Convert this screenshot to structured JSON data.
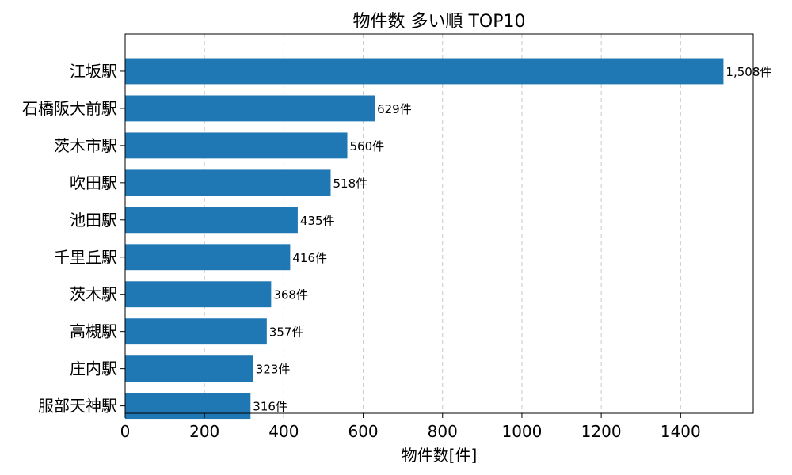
{
  "chart_data": {
    "type": "bar",
    "orientation": "horizontal",
    "title": "物件数 多い順 TOP10",
    "xlabel": "物件数[件]",
    "ylabel": "",
    "categories": [
      "江坂駅",
      "石橋阪大前駅",
      "茨木市駅",
      "吹田駅",
      "池田駅",
      "千里丘駅",
      "茨木駅",
      "高槻駅",
      "庄内駅",
      "服部天神駅"
    ],
    "values": [
      1508,
      629,
      560,
      518,
      435,
      416,
      368,
      357,
      323,
      316
    ],
    "data_labels": [
      "1,508件",
      "629件",
      "560件",
      "518件",
      "435件",
      "416件",
      "368件",
      "357件",
      "323件",
      "316件"
    ],
    "x_ticks": [
      0,
      200,
      400,
      600,
      800,
      1000,
      1200,
      1400
    ],
    "xlim": [
      0,
      1583
    ],
    "grid": "x-dashed",
    "bar_color": "#1f77b4"
  }
}
